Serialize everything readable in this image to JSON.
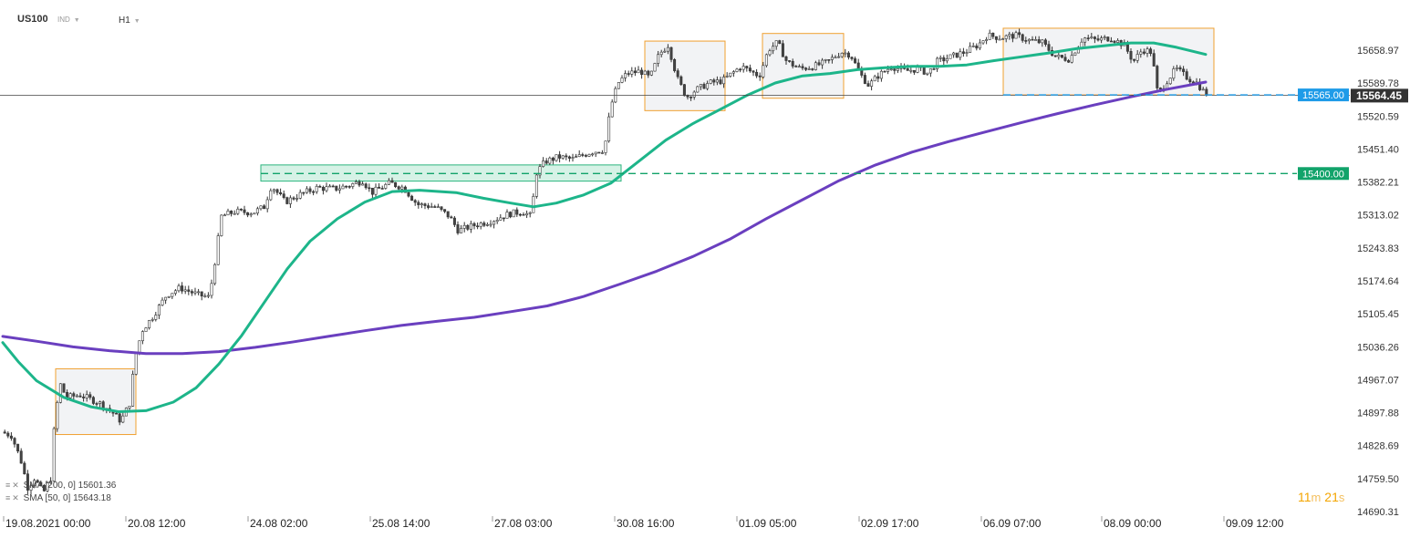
{
  "header": {
    "symbol": "US100",
    "symbol_type": "IND",
    "timeframe": "H1"
  },
  "indicators": [
    {
      "prefix": "SMA",
      "params": "[200, 0]",
      "value": "15601.36",
      "color": "#6a3fbf"
    },
    {
      "prefix": "SMA",
      "params": "[50, 0]",
      "value": "15643.18",
      "color": "#1db58a"
    }
  ],
  "timer": {
    "minutes": "11",
    "m_unit": "m",
    "seconds": "21",
    "s_unit": "s"
  },
  "chart_data": {
    "type": "candlestick",
    "ylim": [
      14690.31,
      15727.76
    ],
    "y_ticks": [
      "15658.97",
      "15589.78",
      "15520.59",
      "15451.40",
      "15382.21",
      "15313.02",
      "15243.83",
      "15174.64",
      "15105.45",
      "15036.26",
      "14967.07",
      "14897.88",
      "14828.69",
      "14759.50",
      "14690.31"
    ],
    "x_ticks": [
      "19.08.2021  00:00",
      "20.08  12:00",
      "24.08  02:00",
      "25.08  14:00",
      "27.08  03:00",
      "30.08  16:00",
      "01.09  05:00",
      "02.09  17:00",
      "06.09  07:00",
      "08.09  00:00",
      "09.09  12:00"
    ],
    "price_levels": [
      {
        "value": 15565.0,
        "label": "15565.00",
        "color": "#1e9be8"
      },
      {
        "value": 15400.0,
        "label": "15400.00",
        "color": "#12a36a"
      }
    ],
    "current_price": {
      "value": 15564.45,
      "label": "15564.45",
      "color": "#333333"
    },
    "close_path": [
      [
        0,
        14860
      ],
      [
        15,
        14850
      ],
      [
        25,
        14800
      ],
      [
        33,
        14740
      ],
      [
        40,
        14760
      ],
      [
        50,
        14730
      ],
      [
        58,
        14760
      ],
      [
        62,
        14870
      ],
      [
        68,
        14960
      ],
      [
        75,
        14930
      ],
      [
        90,
        14935
      ],
      [
        110,
        14920
      ],
      [
        125,
        14900
      ],
      [
        135,
        14880
      ],
      [
        145,
        14920
      ],
      [
        150,
        15010
      ],
      [
        158,
        15070
      ],
      [
        170,
        15100
      ],
      [
        185,
        15145
      ],
      [
        200,
        15160
      ],
      [
        220,
        15145
      ],
      [
        232,
        15140
      ],
      [
        240,
        15240
      ],
      [
        245,
        15310
      ],
      [
        260,
        15320
      ],
      [
        280,
        15318
      ],
      [
        292,
        15330
      ],
      [
        300,
        15375
      ],
      [
        315,
        15340
      ],
      [
        330,
        15355
      ],
      [
        350,
        15370
      ],
      [
        370,
        15368
      ],
      [
        385,
        15375
      ],
      [
        400,
        15385
      ],
      [
        410,
        15360
      ],
      [
        430,
        15380
      ],
      [
        445,
        15370
      ],
      [
        460,
        15335
      ],
      [
        480,
        15330
      ],
      [
        495,
        15310
      ],
      [
        505,
        15280
      ],
      [
        520,
        15290
      ],
      [
        540,
        15300
      ],
      [
        560,
        15315
      ],
      [
        575,
        15320
      ],
      [
        585,
        15310
      ],
      [
        590,
        15400
      ],
      [
        600,
        15425
      ],
      [
        615,
        15435
      ],
      [
        630,
        15430
      ],
      [
        650,
        15445
      ],
      [
        665,
        15450
      ],
      [
        672,
        15540
      ],
      [
        680,
        15590
      ],
      [
        690,
        15610
      ],
      [
        705,
        15615
      ],
      [
        715,
        15600
      ],
      [
        725,
        15650
      ],
      [
        735,
        15670
      ],
      [
        745,
        15600
      ],
      [
        755,
        15560
      ],
      [
        765,
        15575
      ],
      [
        780,
        15590
      ],
      [
        795,
        15595
      ],
      [
        805,
        15610
      ],
      [
        815,
        15625
      ],
      [
        825,
        15615
      ],
      [
        835,
        15605
      ],
      [
        845,
        15660
      ],
      [
        855,
        15675
      ],
      [
        865,
        15635
      ],
      [
        880,
        15620
      ],
      [
        895,
        15625
      ],
      [
        910,
        15635
      ],
      [
        925,
        15655
      ],
      [
        935,
        15650
      ],
      [
        945,
        15610
      ],
      [
        955,
        15585
      ],
      [
        965,
        15605
      ],
      [
        980,
        15625
      ],
      [
        995,
        15615
      ],
      [
        1010,
        15620
      ],
      [
        1020,
        15610
      ],
      [
        1030,
        15635
      ],
      [
        1045,
        15645
      ],
      [
        1060,
        15655
      ],
      [
        1075,
        15670
      ],
      [
        1085,
        15690
      ],
      [
        1100,
        15685
      ],
      [
        1115,
        15690
      ],
      [
        1130,
        15680
      ],
      [
        1145,
        15675
      ],
      [
        1160,
        15645
      ],
      [
        1175,
        15640
      ],
      [
        1190,
        15685
      ],
      [
        1205,
        15680
      ],
      [
        1220,
        15685
      ],
      [
        1235,
        15670
      ],
      [
        1245,
        15635
      ],
      [
        1255,
        15660
      ],
      [
        1265,
        15655
      ],
      [
        1272,
        15565
      ],
      [
        1280,
        15590
      ],
      [
        1292,
        15620
      ],
      [
        1305,
        15600
      ],
      [
        1315,
        15590
      ],
      [
        1325,
        15564.45
      ]
    ],
    "sma_50": {
      "name": "SMA [50, 0]",
      "color": "#1db58a",
      "points": [
        [
          3,
          15045
        ],
        [
          20,
          15005
        ],
        [
          40,
          14965
        ],
        [
          70,
          14930
        ],
        [
          100,
          14910
        ],
        [
          130,
          14900
        ],
        [
          160,
          14902
        ],
        [
          190,
          14920
        ],
        [
          215,
          14950
        ],
        [
          240,
          15000
        ],
        [
          265,
          15060
        ],
        [
          290,
          15130
        ],
        [
          315,
          15200
        ],
        [
          340,
          15258
        ],
        [
          370,
          15305
        ],
        [
          400,
          15340
        ],
        [
          430,
          15362
        ],
        [
          460,
          15365
        ],
        [
          500,
          15360
        ],
        [
          530,
          15348
        ],
        [
          560,
          15338
        ],
        [
          585,
          15330
        ],
        [
          610,
          15338
        ],
        [
          640,
          15355
        ],
        [
          670,
          15380
        ],
        [
          700,
          15425
        ],
        [
          730,
          15470
        ],
        [
          760,
          15505
        ],
        [
          790,
          15535
        ],
        [
          820,
          15565
        ],
        [
          850,
          15590
        ],
        [
          880,
          15605
        ],
        [
          910,
          15610
        ],
        [
          940,
          15618
        ],
        [
          970,
          15622
        ],
        [
          1000,
          15625
        ],
        [
          1030,
          15625
        ],
        [
          1060,
          15628
        ],
        [
          1090,
          15637
        ],
        [
          1120,
          15645
        ],
        [
          1150,
          15653
        ],
        [
          1180,
          15662
        ],
        [
          1210,
          15668
        ],
        [
          1240,
          15674
        ],
        [
          1265,
          15674
        ],
        [
          1290,
          15665
        ],
        [
          1322,
          15650
        ]
      ]
    },
    "sma_200": {
      "name": "SMA [200, 0]",
      "color": "#6a3fbf",
      "points": [
        [
          3,
          15058
        ],
        [
          40,
          15048
        ],
        [
          80,
          15036
        ],
        [
          120,
          15028
        ],
        [
          160,
          15022
        ],
        [
          200,
          15022
        ],
        [
          240,
          15026
        ],
        [
          280,
          15035
        ],
        [
          320,
          15046
        ],
        [
          360,
          15058
        ],
        [
          400,
          15070
        ],
        [
          440,
          15081
        ],
        [
          480,
          15090
        ],
        [
          520,
          15098
        ],
        [
          560,
          15110
        ],
        [
          600,
          15122
        ],
        [
          640,
          15142
        ],
        [
          680,
          15168
        ],
        [
          720,
          15195
        ],
        [
          760,
          15226
        ],
        [
          800,
          15262
        ],
        [
          840,
          15305
        ],
        [
          880,
          15345
        ],
        [
          920,
          15385
        ],
        [
          960,
          15418
        ],
        [
          1000,
          15445
        ],
        [
          1040,
          15467
        ],
        [
          1080,
          15487
        ],
        [
          1120,
          15507
        ],
        [
          1160,
          15526
        ],
        [
          1200,
          15544
        ],
        [
          1240,
          15561
        ],
        [
          1280,
          15577
        ],
        [
          1322,
          15592
        ]
      ]
    },
    "zones": [
      {
        "x0": 61,
        "x1": 149,
        "y_top": 14990,
        "y_bot": 14852,
        "type": "box"
      },
      {
        "x0": 707,
        "x1": 795,
        "y_top": 15678,
        "y_bot": 15532,
        "type": "box"
      },
      {
        "x0": 836,
        "x1": 925,
        "y_top": 15694,
        "y_bot": 15558,
        "type": "box"
      },
      {
        "x0": 1100,
        "x1": 1331,
        "y_top": 15705,
        "y_bot": 15565,
        "type": "box"
      },
      {
        "x0": 286,
        "x1": 681,
        "y_top": 15418,
        "y_bot": 15384,
        "type": "band"
      }
    ]
  }
}
